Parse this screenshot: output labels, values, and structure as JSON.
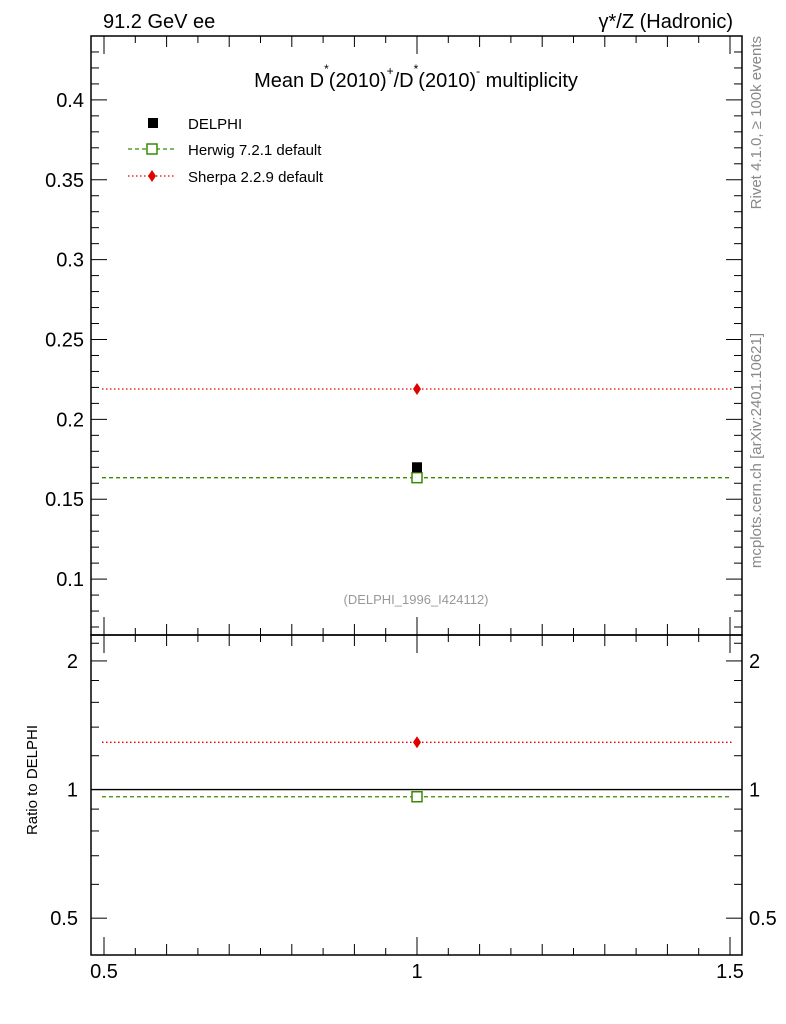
{
  "header": {
    "left": "91.2 GeV ee",
    "right": "γ*/Z (Hadronic)"
  },
  "title": {
    "prefix": "Mean D",
    "sup1": "*",
    "mid1": "(2010)",
    "sup2": "+",
    "mid2": "/D",
    "sup3": "*",
    "mid3": "(2010)",
    "sup4": "-",
    "suffix": " multiplicity"
  },
  "side_labels": {
    "rivet": "Rivet 4.1.0, ≥ 100k events",
    "mcplots": "mcplots.cern.ch [arXiv:2401.10621]"
  },
  "analysis_tag": "(DELPHI_1996_I424112)",
  "colors": {
    "data": "#000000",
    "herwig": "#3a8a00",
    "sherpa": "#e00000"
  },
  "chart_data": [
    {
      "type": "scatter",
      "panel": "main",
      "xlim": [
        0.5,
        1.5
      ],
      "ylim": [
        0.065,
        0.44
      ],
      "yticks": [
        0.1,
        0.15,
        0.2,
        0.25,
        0.3,
        0.35,
        0.4
      ],
      "ytick_labels": [
        "0.1",
        "0.15",
        "0.2",
        "0.25",
        "0.3",
        "0.35",
        "0.4"
      ],
      "legend_position": "top-left",
      "series": [
        {
          "name": "DELPHI",
          "style": "data",
          "x": [
            1.0
          ],
          "y": [
            0.17
          ]
        },
        {
          "name": "Herwig 7.2.1 default",
          "style": "herwig",
          "x": [
            1.0
          ],
          "y": [
            0.1635
          ],
          "line_range": [
            0.5,
            1.5
          ]
        },
        {
          "name": "Sherpa 2.2.9 default",
          "style": "sherpa",
          "x": [
            1.0
          ],
          "y": [
            0.219
          ],
          "line_range": [
            0.5,
            1.5
          ]
        }
      ]
    },
    {
      "type": "scatter",
      "panel": "ratio",
      "ylabel": "Ratio to DELPHI",
      "xlim": [
        0.5,
        1.5
      ],
      "ylim": [
        0.41,
        2.3
      ],
      "yscale": "log",
      "yticks": [
        0.5,
        1,
        2
      ],
      "ytick_labels": [
        "0.5",
        "1",
        "2"
      ],
      "xticks": [
        0.5,
        1,
        1.5
      ],
      "xtick_labels": [
        "0.5",
        "1",
        "1.5"
      ],
      "reference_line": 1.0,
      "series": [
        {
          "name": "Herwig 7.2.1 default",
          "style": "herwig",
          "x": [
            1.0
          ],
          "y": [
            0.962
          ]
        },
        {
          "name": "Sherpa 2.2.9 default",
          "style": "sherpa",
          "x": [
            1.0
          ],
          "y": [
            1.29
          ]
        }
      ]
    }
  ]
}
